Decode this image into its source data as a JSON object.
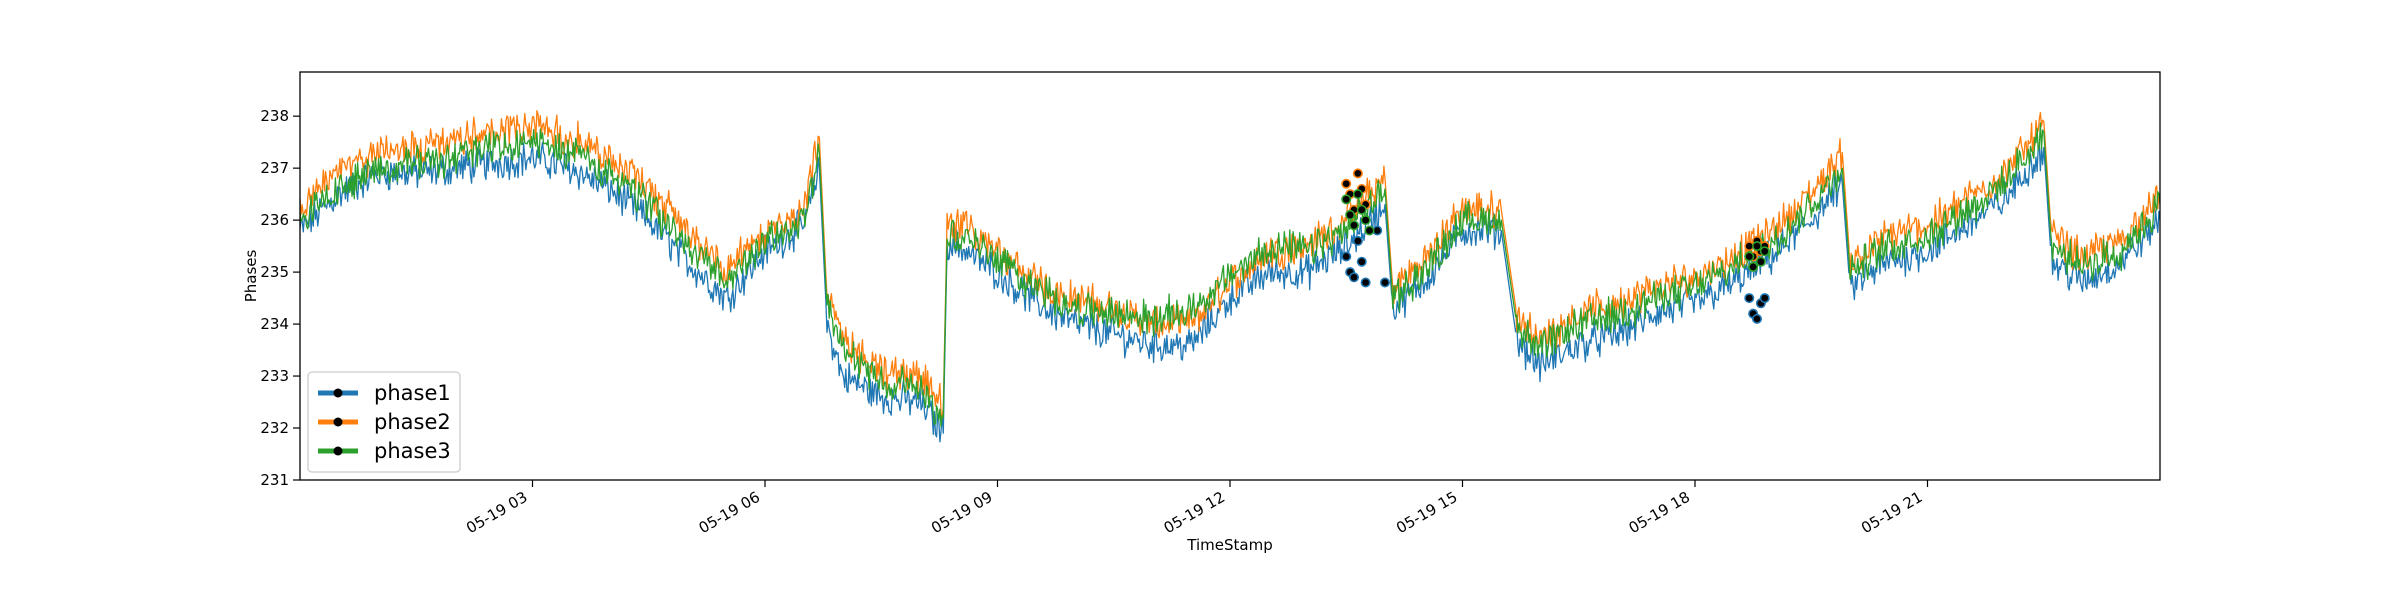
{
  "chart_data": {
    "type": "line",
    "title": "",
    "xlabel": "TimeStamp",
    "ylabel": "Phases",
    "x_range": [
      "2019-05-19 00:00",
      "2019-05-20 00:00"
    ],
    "x_ticks": [
      {
        "label": "05-19 03",
        "hour": 3
      },
      {
        "label": "05-19 06",
        "hour": 6
      },
      {
        "label": "05-19 09",
        "hour": 9
      },
      {
        "label": "05-19 12",
        "hour": 12
      },
      {
        "label": "05-19 15",
        "hour": 15
      },
      {
        "label": "05-19 18",
        "hour": 18
      },
      {
        "label": "05-19 21",
        "hour": 21
      }
    ],
    "ylim": [
      231,
      238.85
    ],
    "y_ticks": [
      231,
      232,
      233,
      234,
      235,
      236,
      237,
      238
    ],
    "grid": false,
    "legend_position": "lower-left",
    "series": [
      {
        "name": "phase1",
        "color": "#1f77b4",
        "x_hours": [
          0,
          0.5,
          1,
          1.5,
          2,
          2.5,
          3,
          3.5,
          4,
          4.5,
          5,
          5.5,
          6,
          6.5,
          6.7,
          6.8,
          7,
          7.5,
          8,
          8.3,
          8.35,
          8.5,
          9,
          9.5,
          10,
          10.5,
          11,
          11.5,
          12,
          12.5,
          13,
          13.5,
          14,
          14.1,
          14.5,
          15,
          15.5,
          15.7,
          16,
          16.5,
          17,
          17.5,
          18,
          18.5,
          19,
          19.5,
          19.9,
          20,
          20.5,
          21,
          21.5,
          22,
          22.5,
          22.6,
          23,
          23.5,
          24
        ],
        "values": [
          235.8,
          236.5,
          236.9,
          236.9,
          237.0,
          237.1,
          237.2,
          237.0,
          236.6,
          236.0,
          235.2,
          234.5,
          235.4,
          235.9,
          237.0,
          234.0,
          233.0,
          232.6,
          232.5,
          231.9,
          235.6,
          235.5,
          235.0,
          234.4,
          234.0,
          233.8,
          233.6,
          233.6,
          234.5,
          235.0,
          235.0,
          235.5,
          236.3,
          234.3,
          234.8,
          235.8,
          235.8,
          233.7,
          233.2,
          233.6,
          233.8,
          234.2,
          234.4,
          234.8,
          235.3,
          236.0,
          236.7,
          234.7,
          235.2,
          235.4,
          235.9,
          236.4,
          237.4,
          235.2,
          234.8,
          235.2,
          236.0
        ]
      },
      {
        "name": "phase2",
        "color": "#ff7f0e",
        "x_hours": [
          0,
          0.5,
          1,
          1.5,
          2,
          2.5,
          3,
          3.5,
          4,
          4.5,
          5,
          5.5,
          6,
          6.5,
          6.7,
          6.8,
          7,
          7.5,
          8,
          8.3,
          8.35,
          8.5,
          9,
          9.5,
          10,
          10.5,
          11,
          11.5,
          12,
          12.5,
          13,
          13.5,
          14,
          14.1,
          14.5,
          15,
          15.5,
          15.7,
          16,
          16.5,
          17,
          17.5,
          18,
          18.5,
          19,
          19.5,
          19.9,
          20,
          20.5,
          21,
          21.5,
          22,
          22.5,
          22.6,
          23,
          23.5,
          24
        ],
        "values": [
          236.2,
          236.9,
          237.3,
          237.4,
          237.5,
          237.7,
          237.8,
          237.6,
          237.2,
          236.6,
          235.8,
          235.0,
          235.8,
          236.2,
          237.6,
          234.5,
          233.7,
          233.1,
          233.0,
          232.4,
          236.0,
          235.9,
          235.4,
          234.8,
          234.5,
          234.3,
          234.0,
          234.0,
          234.8,
          235.4,
          235.5,
          236.0,
          236.8,
          234.7,
          235.2,
          236.2,
          236.2,
          234.2,
          233.7,
          234.2,
          234.4,
          234.7,
          234.9,
          235.3,
          235.8,
          236.5,
          237.3,
          235.2,
          235.7,
          235.9,
          236.4,
          236.9,
          237.9,
          235.7,
          235.3,
          235.6,
          236.5
        ]
      },
      {
        "name": "phase3",
        "color": "#2ca02c",
        "x_hours": [
          0,
          0.5,
          1,
          1.5,
          2,
          2.5,
          3,
          3.5,
          4,
          4.5,
          5,
          5.5,
          6,
          6.5,
          6.7,
          6.8,
          7,
          7.5,
          8,
          8.3,
          8.35,
          8.5,
          9,
          9.5,
          10,
          10.5,
          11,
          11.5,
          12,
          12.5,
          13,
          13.5,
          14,
          14.1,
          14.5,
          15,
          15.5,
          15.7,
          16,
          16.5,
          17,
          17.5,
          18,
          18.5,
          19,
          19.5,
          19.9,
          20,
          20.5,
          21,
          21.5,
          22,
          22.5,
          22.6,
          23,
          23.5,
          24
        ],
        "values": [
          236.0,
          236.6,
          237.0,
          237.1,
          237.2,
          237.4,
          237.5,
          237.3,
          236.9,
          236.3,
          235.5,
          234.8,
          235.6,
          236.0,
          237.3,
          234.3,
          233.5,
          232.9,
          232.8,
          232.2,
          235.8,
          235.7,
          235.3,
          234.7,
          234.3,
          234.2,
          234.1,
          234.3,
          234.9,
          235.5,
          235.4,
          235.8,
          236.6,
          234.5,
          235.0,
          236.0,
          236.0,
          234.0,
          233.5,
          234.0,
          234.2,
          234.5,
          234.7,
          235.1,
          235.6,
          236.3,
          237.0,
          235.0,
          235.5,
          235.7,
          236.2,
          236.7,
          237.7,
          235.5,
          235.1,
          235.4,
          236.3
        ]
      }
    ],
    "markers": [
      {
        "series": "phase1",
        "points": [
          [
            13.5,
            235.3
          ],
          [
            13.55,
            235.0
          ],
          [
            13.6,
            234.9
          ],
          [
            13.65,
            235.6
          ],
          [
            13.7,
            235.2
          ],
          [
            13.75,
            234.8
          ],
          [
            13.9,
            235.8
          ],
          [
            14.0,
            234.8
          ],
          [
            18.7,
            234.5
          ],
          [
            18.75,
            234.2
          ],
          [
            18.8,
            234.1
          ],
          [
            18.85,
            234.4
          ],
          [
            18.9,
            234.5
          ]
        ]
      },
      {
        "series": "phase2",
        "points": [
          [
            13.5,
            236.7
          ],
          [
            13.55,
            236.5
          ],
          [
            13.6,
            236.2
          ],
          [
            13.65,
            236.9
          ],
          [
            13.7,
            236.6
          ],
          [
            13.75,
            236.3
          ],
          [
            18.7,
            235.5
          ],
          [
            18.75,
            235.3
          ],
          [
            18.8,
            235.6
          ],
          [
            18.85,
            235.4
          ],
          [
            18.9,
            235.5
          ]
        ]
      },
      {
        "series": "phase3",
        "points": [
          [
            13.5,
            236.4
          ],
          [
            13.55,
            236.1
          ],
          [
            13.6,
            235.9
          ],
          [
            13.65,
            236.5
          ],
          [
            13.7,
            236.2
          ],
          [
            13.75,
            236.0
          ],
          [
            13.8,
            235.8
          ],
          [
            18.7,
            235.3
          ],
          [
            18.75,
            235.1
          ],
          [
            18.8,
            235.5
          ],
          [
            18.85,
            235.2
          ],
          [
            18.9,
            235.4
          ]
        ]
      }
    ]
  }
}
